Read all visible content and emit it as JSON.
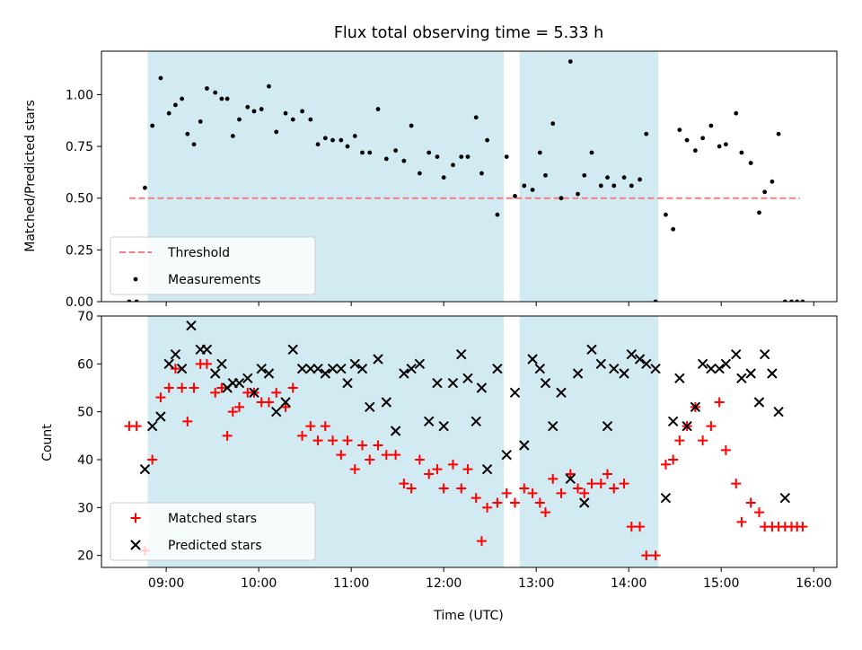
{
  "chart_data": [
    {
      "type": "scatter",
      "title": "Flux total observing time = 5.33 h",
      "xlabel": "",
      "ylabel": "Matched/Predicted stars",
      "x_unit": "hours (UTC)",
      "xlim": [
        8.3,
        16.25
      ],
      "ylim": [
        0.0,
        1.21
      ],
      "yticks": [
        "0.00",
        "0.25",
        "0.50",
        "0.75",
        "1.00"
      ],
      "ytick_values": [
        0,
        0.25,
        0.5,
        0.75,
        1.0
      ],
      "xtick_values": [
        9,
        10,
        11,
        12,
        13,
        14,
        15,
        16
      ],
      "shaded_intervals": [
        [
          8.8,
          12.65
        ],
        [
          12.82,
          14.32
        ]
      ],
      "shade_color": "#add8e6",
      "legend_position": "lower-left",
      "series": [
        {
          "name": "Threshold",
          "style": "dashed-line",
          "color": "#f08080",
          "x": [
            8.6,
            15.85
          ],
          "y": [
            0.5,
            0.5
          ]
        },
        {
          "name": "Measurements",
          "style": "dot",
          "color": "#000000",
          "x": [
            8.6,
            8.68,
            8.77,
            8.85,
            8.94,
            9.03,
            9.1,
            9.17,
            9.23,
            9.3,
            9.37,
            9.44,
            9.53,
            9.6,
            9.66,
            9.72,
            9.79,
            9.88,
            9.95,
            10.03,
            10.11,
            10.19,
            10.29,
            10.37,
            10.47,
            10.56,
            10.64,
            10.72,
            10.8,
            10.89,
            10.96,
            11.04,
            11.12,
            11.2,
            11.29,
            11.38,
            11.48,
            11.57,
            11.65,
            11.74,
            11.84,
            11.93,
            12.0,
            12.1,
            12.19,
            12.26,
            12.35,
            12.41,
            12.47,
            12.58,
            12.68,
            12.77,
            12.87,
            12.96,
            13.04,
            13.1,
            13.18,
            13.27,
            13.37,
            13.45,
            13.52,
            13.6,
            13.7,
            13.77,
            13.84,
            13.95,
            14.03,
            14.12,
            14.19,
            14.29,
            14.4,
            14.48,
            14.55,
            14.63,
            14.72,
            14.8,
            14.89,
            14.98,
            15.05,
            15.16,
            15.22,
            15.32,
            15.41,
            15.47,
            15.55,
            15.62,
            15.69,
            15.76,
            15.82,
            15.88
          ],
          "y": [
            0.0,
            0.0,
            0.55,
            0.85,
            1.08,
            0.91,
            0.95,
            0.98,
            0.81,
            0.76,
            0.87,
            1.03,
            1.01,
            0.98,
            0.98,
            0.8,
            0.88,
            0.94,
            0.92,
            0.93,
            1.04,
            0.82,
            0.91,
            0.88,
            0.92,
            0.88,
            0.76,
            0.79,
            0.78,
            0.78,
            0.75,
            0.8,
            0.72,
            0.72,
            0.93,
            0.69,
            0.73,
            0.68,
            0.85,
            0.62,
            0.72,
            0.7,
            0.6,
            0.66,
            0.7,
            0.7,
            0.89,
            0.62,
            0.78,
            0.42,
            0.7,
            0.51,
            0.56,
            0.54,
            0.72,
            0.61,
            0.86,
            0.5,
            1.16,
            0.52,
            0.61,
            0.72,
            0.56,
            0.6,
            0.56,
            0.6,
            0.56,
            0.59,
            0.81,
            0.0,
            0.42,
            0.35,
            0.83,
            0.78,
            0.73,
            0.79,
            0.85,
            0.75,
            0.76,
            0.91,
            0.72,
            0.67,
            0.43,
            0.53,
            0.58,
            0.81,
            0.0,
            0.0,
            0.0,
            0.0
          ]
        }
      ]
    },
    {
      "type": "scatter",
      "title": "",
      "xlabel": "Time (UTC)",
      "ylabel": "Count",
      "x_unit": "hours (UTC)",
      "xlim": [
        8.3,
        16.25
      ],
      "ylim": [
        17.5,
        70
      ],
      "yticks": [
        "20",
        "30",
        "40",
        "50",
        "60",
        "70"
      ],
      "ytick_values": [
        20,
        30,
        40,
        50,
        60,
        70
      ],
      "xticks": [
        "09:00",
        "10:00",
        "11:00",
        "12:00",
        "13:00",
        "14:00",
        "15:00",
        "16:00"
      ],
      "xtick_values": [
        9,
        10,
        11,
        12,
        13,
        14,
        15,
        16
      ],
      "shaded_intervals": [
        [
          8.8,
          12.65
        ],
        [
          12.82,
          14.32
        ]
      ],
      "shade_color": "#add8e6",
      "legend_position": "lower-left",
      "series": [
        {
          "name": "Matched stars",
          "marker": "plus",
          "color": "#ff0000",
          "x": [
            8.6,
            8.68,
            8.77,
            8.85,
            8.94,
            9.03,
            9.1,
            9.17,
            9.23,
            9.3,
            9.37,
            9.44,
            9.53,
            9.6,
            9.66,
            9.72,
            9.79,
            9.88,
            9.95,
            10.03,
            10.11,
            10.19,
            10.29,
            10.37,
            10.47,
            10.56,
            10.64,
            10.72,
            10.8,
            10.89,
            10.96,
            11.04,
            11.12,
            11.2,
            11.29,
            11.38,
            11.48,
            11.57,
            11.65,
            11.74,
            11.84,
            11.93,
            12.0,
            12.1,
            12.19,
            12.26,
            12.35,
            12.41,
            12.47,
            12.58,
            12.68,
            12.77,
            12.87,
            12.96,
            13.04,
            13.1,
            13.18,
            13.27,
            13.37,
            13.45,
            13.52,
            13.6,
            13.7,
            13.77,
            13.84,
            13.95,
            14.03,
            14.12,
            14.19,
            14.29,
            14.4,
            14.48,
            14.55,
            14.63,
            14.72,
            14.8,
            14.89,
            14.98,
            15.05,
            15.16,
            15.22,
            15.32,
            15.41,
            15.47,
            15.55,
            15.62,
            15.69,
            15.76,
            15.82,
            15.88
          ],
          "y": [
            47,
            47,
            21,
            40,
            53,
            55,
            59,
            55,
            48,
            55,
            60,
            60,
            54,
            55,
            45,
            50,
            51,
            54,
            54,
            52,
            52,
            54,
            51,
            55,
            45,
            47,
            44,
            47,
            44,
            41,
            44,
            38,
            43,
            40,
            43,
            41,
            41,
            35,
            34,
            40,
            37,
            38,
            34,
            39,
            34,
            38,
            32,
            23,
            30,
            31,
            33,
            31,
            34,
            33,
            31,
            29,
            36,
            33,
            37,
            34,
            33,
            35,
            35,
            37,
            34,
            35,
            26,
            26,
            20,
            20,
            39,
            40,
            44,
            47,
            51,
            44,
            47,
            52,
            42,
            35,
            27,
            31,
            29,
            26,
            26,
            26,
            26,
            26,
            26,
            26
          ]
        },
        {
          "name": "Predicted stars",
          "marker": "x",
          "color": "#000000",
          "x": [
            8.77,
            8.85,
            8.94,
            9.03,
            9.1,
            9.17,
            9.27,
            9.37,
            9.44,
            9.53,
            9.6,
            9.66,
            9.72,
            9.79,
            9.88,
            9.95,
            10.03,
            10.11,
            10.19,
            10.29,
            10.37,
            10.47,
            10.56,
            10.64,
            10.72,
            10.8,
            10.89,
            10.96,
            11.04,
            11.12,
            11.2,
            11.29,
            11.38,
            11.48,
            11.57,
            11.65,
            11.74,
            11.84,
            11.93,
            12.0,
            12.1,
            12.19,
            12.26,
            12.35,
            12.41,
            12.47,
            12.58,
            12.68,
            12.77,
            12.87,
            12.96,
            13.04,
            13.1,
            13.18,
            13.27,
            13.37,
            13.45,
            13.52,
            13.6,
            13.7,
            13.77,
            13.84,
            13.95,
            14.03,
            14.12,
            14.19,
            14.29,
            14.4,
            14.48,
            14.55,
            14.63,
            14.72,
            14.8,
            14.89,
            14.98,
            15.05,
            15.16,
            15.22,
            15.32,
            15.41,
            15.47,
            15.55,
            15.62,
            15.69
          ],
          "y": [
            38,
            47,
            49,
            60,
            62,
            59,
            68,
            63,
            63,
            58,
            60,
            55,
            56,
            56,
            57,
            54,
            59,
            58,
            50,
            52,
            63,
            59,
            59,
            59,
            58,
            59,
            59,
            56,
            60,
            59,
            51,
            61,
            52,
            46,
            58,
            59,
            60,
            48,
            56,
            47,
            56,
            62,
            57,
            48,
            55,
            38,
            59,
            41,
            54,
            43,
            61,
            59,
            56,
            47,
            54,
            36,
            58,
            31,
            63,
            60,
            47,
            59,
            58,
            62,
            61,
            60,
            59,
            32,
            48,
            57,
            47,
            51,
            60,
            59,
            59,
            60,
            62,
            57,
            58,
            52,
            62,
            58,
            50,
            32
          ]
        }
      ]
    }
  ]
}
